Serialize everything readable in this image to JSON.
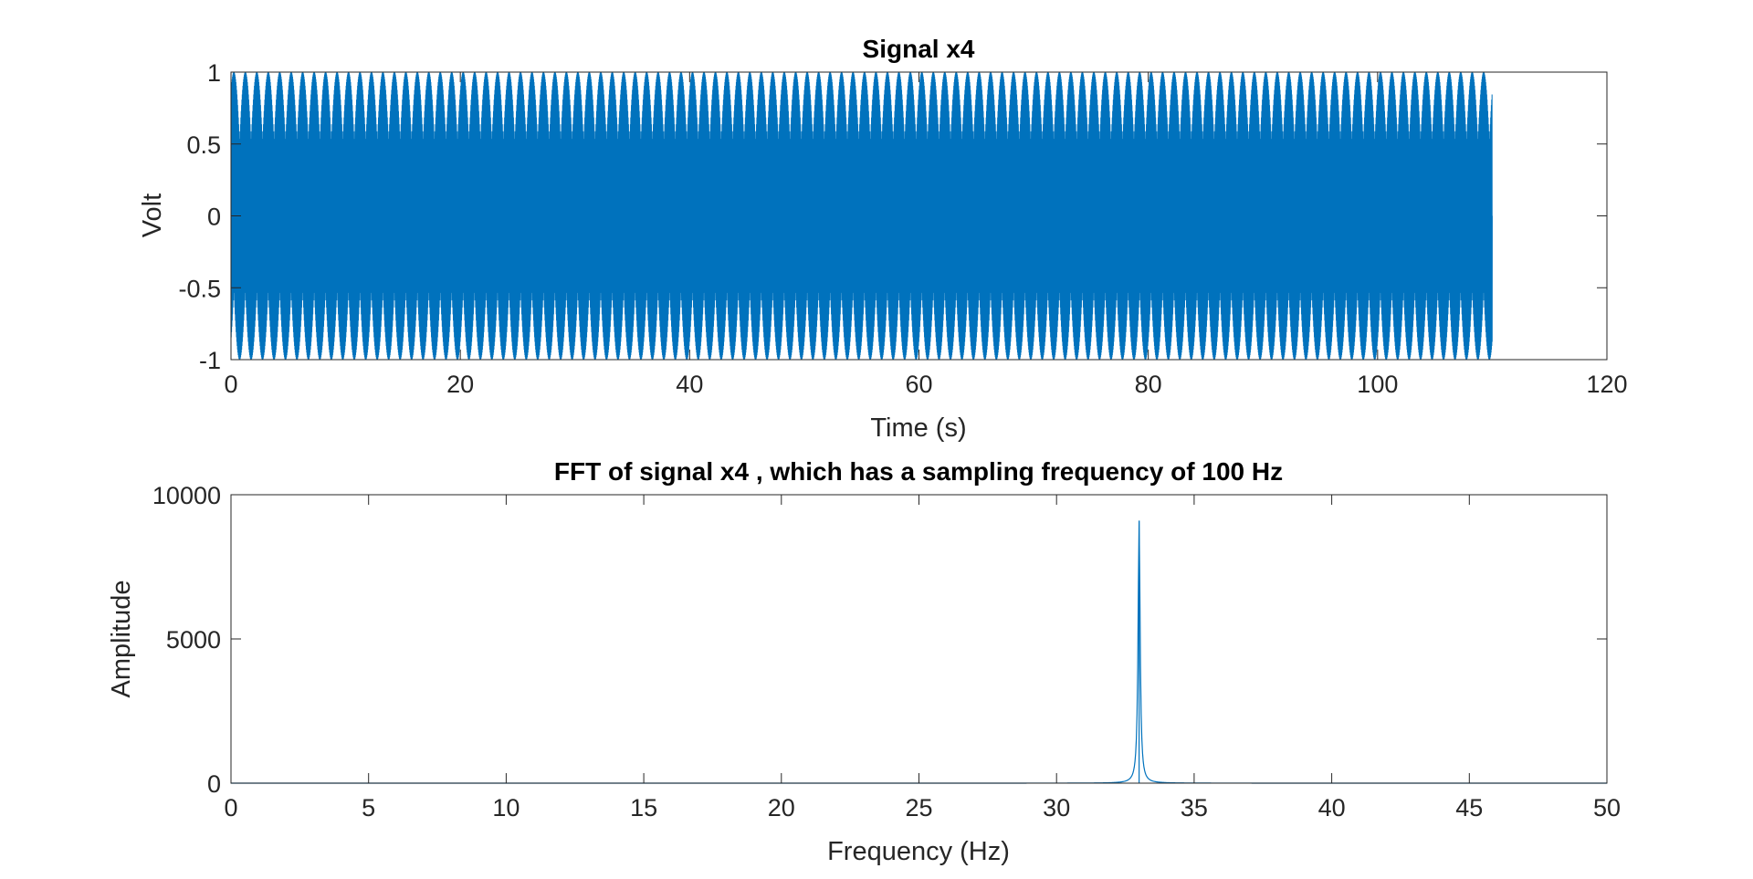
{
  "chart_data": [
    {
      "type": "line",
      "title": "Signal x4",
      "xlabel": "Time (s)",
      "ylabel": "Volt",
      "xlim": [
        0,
        120
      ],
      "ylim": [
        -1,
        1
      ],
      "xticks": [
        0,
        20,
        40,
        60,
        80,
        100,
        120
      ],
      "yticks": [
        -1,
        -0.5,
        0,
        0.5,
        1
      ],
      "ytick_labels": [
        "-1",
        "-0.5",
        "0",
        "0.5",
        "1"
      ],
      "grid": false,
      "color": "#0072BD",
      "signal": {
        "shape": "sinusoid",
        "amplitude": 1,
        "frequency_hz": 33,
        "sampling_frequency_hz": 100,
        "t_start": 0,
        "t_end": 110
      }
    },
    {
      "type": "line",
      "title": "FFT of signal x4 , which has a sampling frequency of 100 Hz",
      "xlabel": "Frequency (Hz)",
      "ylabel": "Amplitude",
      "xlim": [
        0,
        50
      ],
      "ylim": [
        0,
        10000
      ],
      "xticks": [
        0,
        5,
        10,
        15,
        20,
        25,
        30,
        35,
        40,
        45,
        50
      ],
      "yticks": [
        0,
        5000,
        10000
      ],
      "grid": false,
      "color": "#0072BD",
      "peak": {
        "frequency_hz": 33,
        "amplitude": 9100
      },
      "baseline": 0
    }
  ]
}
